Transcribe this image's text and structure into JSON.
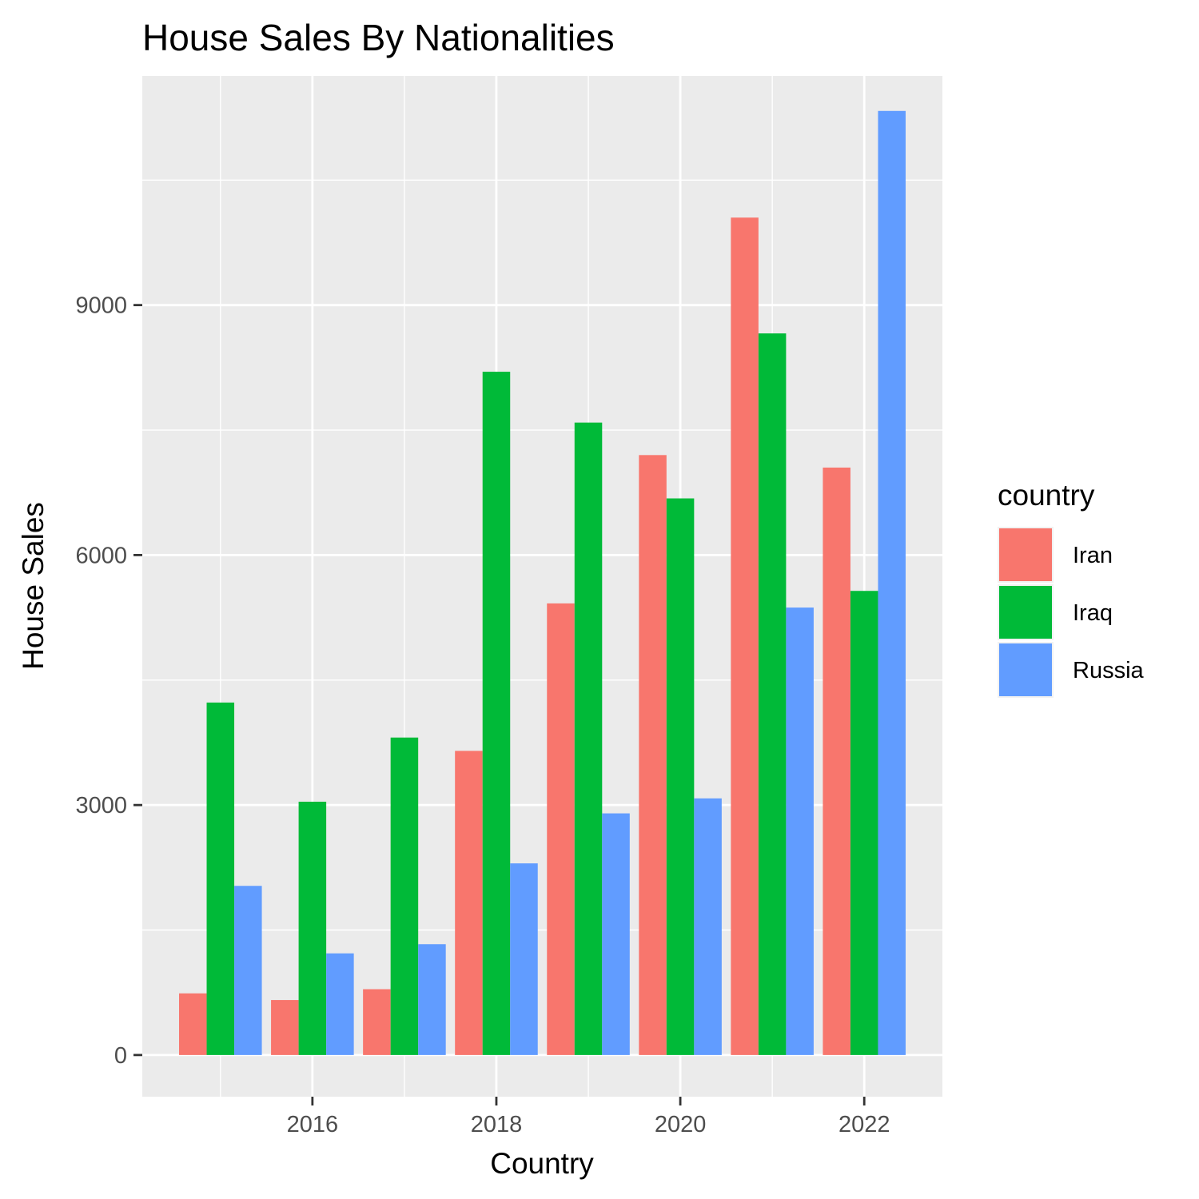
{
  "chart_data": {
    "type": "bar",
    "title": "House Sales By Nationalities",
    "xlabel": "Country",
    "ylabel": "House Sales",
    "x": [
      2015,
      2016,
      2017,
      2018,
      2019,
      2020,
      2021,
      2022
    ],
    "x_ticks": [
      2016,
      2018,
      2020,
      2022
    ],
    "y_ticks": [
      0,
      3000,
      6000,
      9000
    ],
    "xlim": [
      2014.15,
      2022.85
    ],
    "ylim": [
      -500,
      11750
    ],
    "grid": true,
    "legend_title": "country",
    "legend_position": "right",
    "series": [
      {
        "name": "Iran",
        "color": "#F8766D",
        "values": [
          740,
          660,
          790,
          3650,
          5420,
          7200,
          10050,
          7050
        ]
      },
      {
        "name": "Iraq",
        "color": "#00BA38",
        "values": [
          4230,
          3040,
          3810,
          8200,
          7590,
          6680,
          8660,
          5570
        ]
      },
      {
        "name": "Russia",
        "color": "#619CFF",
        "values": [
          2030,
          1220,
          1330,
          2300,
          2900,
          3080,
          5370,
          11330
        ]
      }
    ]
  }
}
